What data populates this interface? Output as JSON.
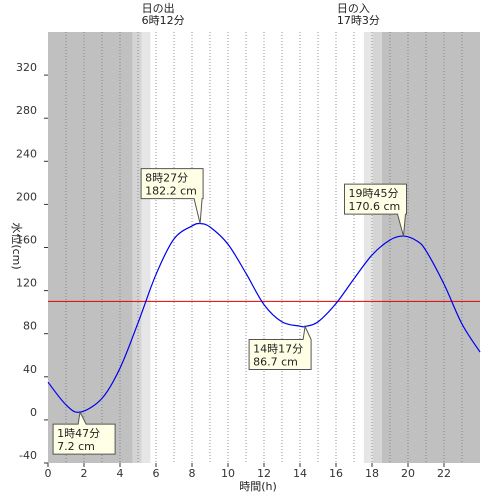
{
  "chart_data": {
    "type": "line",
    "xlabel": "時間(h)",
    "ylabel": "水位(cm)",
    "xlim": [
      0,
      24
    ],
    "ylim": [
      -40,
      360
    ],
    "x_ticks": [
      0,
      2,
      4,
      6,
      8,
      10,
      12,
      14,
      16,
      18,
      20,
      22
    ],
    "y_ticks": [
      -40,
      0,
      40,
      80,
      120,
      160,
      200,
      240,
      280,
      320
    ],
    "grid": "vertical dotted every hour",
    "reference_line": {
      "value": 110,
      "color": "#e00000"
    },
    "series_color": "#0000ee",
    "series": [
      {
        "x": [
          0,
          1,
          1.78,
          3,
          4,
          5,
          6,
          7,
          8,
          8.45,
          9,
          10,
          11,
          12,
          13,
          14,
          14.28,
          15,
          16,
          17,
          18,
          19,
          19.75,
          20.5,
          21,
          22,
          23,
          24
        ],
        "values": [
          35,
          14,
          7.2,
          20,
          48,
          90,
          135,
          168,
          180,
          182.2,
          179,
          163,
          136,
          107,
          91,
          87,
          86.7,
          91,
          108,
          131,
          153,
          167,
          170.6,
          166,
          157,
          126,
          89,
          63
        ]
      }
    ],
    "extremes": [
      {
        "time": 1.783,
        "value": 7.2,
        "label_time": "1時47分",
        "label_value": "7.2 cm"
      },
      {
        "time": 8.45,
        "value": 182.2,
        "label_time": "8時27分",
        "label_value": "182.2 cm"
      },
      {
        "time": 14.283,
        "value": 86.7,
        "label_time": "14時17分",
        "label_value": "86.7 cm"
      },
      {
        "time": 19.75,
        "value": 170.6,
        "label_time": "19時45分",
        "label_value": "170.6 cm"
      }
    ],
    "sunrise": {
      "time": 6.2,
      "label_title": "日の出",
      "label_time": "6時12分"
    },
    "sunset": {
      "time": 17.05,
      "label_title": "日の入",
      "label_time": "17時3分"
    },
    "colors": {
      "night": "#c0c0c0",
      "twilight_dark": "#d4d4d4",
      "twilight_light": "#e6e6e6",
      "day": "#ffffff"
    }
  }
}
